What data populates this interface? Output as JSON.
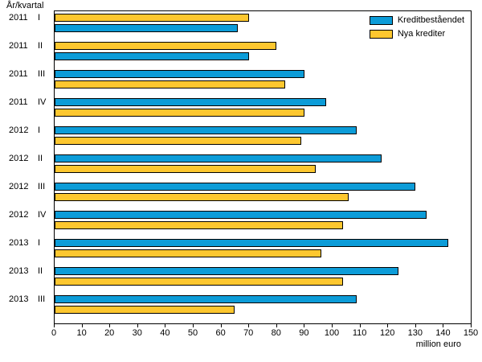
{
  "colors": {
    "background": "#ffffff",
    "plot_border": "#000000",
    "bar_border": "#000000",
    "series_blue": "#0c9cd8",
    "series_yellow": "#fdc72f"
  },
  "chart_data": {
    "type": "bar",
    "orientation": "horizontal",
    "ylabel": "År/kvartal",
    "xlabel": "million euro",
    "xlim": [
      0,
      150
    ],
    "xticks": [
      0,
      10,
      20,
      30,
      40,
      50,
      60,
      70,
      80,
      90,
      100,
      110,
      120,
      130,
      140,
      150
    ],
    "grid": false,
    "legend_position": "top-right-inside",
    "categories": [
      "2011 I",
      "2011 II",
      "2011 III",
      "2011 IV",
      "2012 I",
      "2012 II",
      "2012 III",
      "2012 IV",
      "2013 I",
      "2013 II",
      "2013 III"
    ],
    "series": [
      {
        "name": "Kreditbeståendet",
        "color": "#0c9cd8",
        "values": [
          66,
          70,
          90,
          98,
          109,
          118,
          130,
          134,
          142,
          124,
          109
        ]
      },
      {
        "name": "Nya krediter",
        "color": "#fdc72f",
        "values": [
          70,
          80,
          83,
          90,
          89,
          94,
          106,
          104,
          96,
          104,
          65
        ]
      }
    ],
    "bar_draw_order_by_group": [
      [
        1,
        0
      ],
      [
        1,
        0
      ],
      [
        0,
        1
      ],
      [
        0,
        1
      ],
      [
        0,
        1
      ],
      [
        0,
        1
      ],
      [
        0,
        1
      ],
      [
        0,
        1
      ],
      [
        0,
        1
      ],
      [
        0,
        1
      ],
      [
        0,
        1
      ]
    ]
  }
}
